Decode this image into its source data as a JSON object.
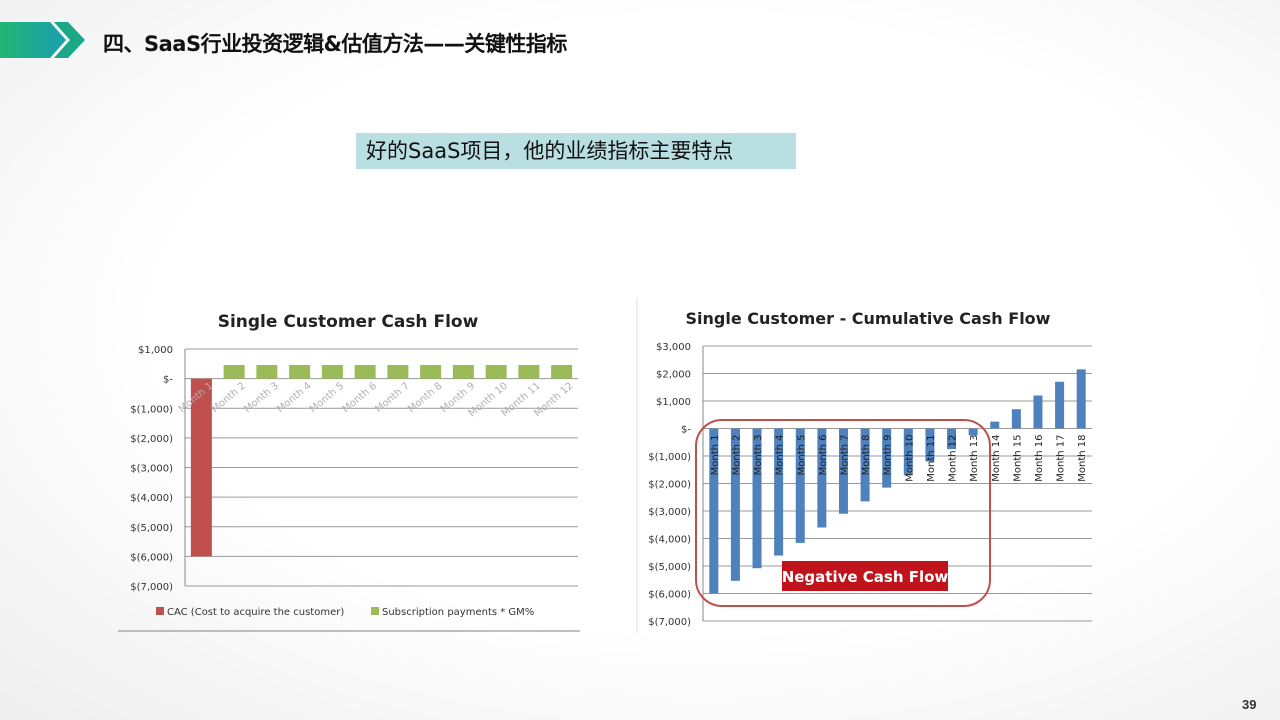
{
  "header": {
    "title": "四、SaaS行业投资逻辑&估值方法——关键性指标",
    "accent": "#1aa889"
  },
  "subtitle": "好的SaaS项目，他的业绩指标主要特点",
  "page_number": "39",
  "chart_data": [
    {
      "type": "bar",
      "title": "Single Customer Cash Flow",
      "categories": [
        "Month 1",
        "Month 2",
        "Month 3",
        "Month 4",
        "Month 5",
        "Month 6",
        "Month 7",
        "Month 8",
        "Month 9",
        "Month 10",
        "Month 11",
        "Month 12"
      ],
      "series": [
        {
          "name": "CAC (Cost to acquire the customer)",
          "color": "#c0504d",
          "values": [
            -6000,
            null,
            null,
            null,
            null,
            null,
            null,
            null,
            null,
            null,
            null,
            null
          ]
        },
        {
          "name": "Subscription payments * GM%",
          "color": "#9bbb59",
          "values": [
            null,
            460,
            460,
            460,
            460,
            460,
            460,
            460,
            460,
            460,
            460,
            460
          ]
        }
      ],
      "yticks": [
        "$1,000",
        "$-",
        "$(1,000)",
        "$(2,000)",
        "$(3,000)",
        "$(4,000)",
        "$(5,000)",
        "$(6,000)",
        "$(7,000)"
      ],
      "ylim": [
        -7000,
        1000
      ],
      "grid": true,
      "legend": "bottom"
    },
    {
      "type": "bar",
      "title": "Single Customer - Cumulative Cash Flow",
      "categories": [
        "Month 1",
        "Month 2",
        "Month 3",
        "Month 4",
        "Month 5",
        "Month 6",
        "Month 7",
        "Month 8",
        "Month 9",
        "Month 10",
        "Month 11",
        "Month 12",
        "Month 13",
        "Month 14",
        "Month 15",
        "Month 16",
        "Month 17",
        "Month 18"
      ],
      "series": [
        {
          "color": "#4f81bd",
          "values": [
            -6000,
            -5540,
            -5080,
            -4620,
            -4160,
            -3600,
            -3100,
            -2650,
            -2150,
            -1700,
            -1200,
            -750,
            -250,
            250,
            700,
            1200,
            1700,
            2150
          ]
        }
      ],
      "yticks": [
        "$3,000",
        "$2,000",
        "$1,000",
        "$-",
        "$(1,000)",
        "$(2,000)",
        "$(3,000)",
        "$(4,000)",
        "$(5,000)",
        "$(6,000)",
        "$(7,000)"
      ],
      "ylim": [
        -7000,
        3000
      ],
      "grid": true,
      "annotation": {
        "text": "Negative Cash Flow",
        "color": "#c0141c"
      }
    }
  ]
}
